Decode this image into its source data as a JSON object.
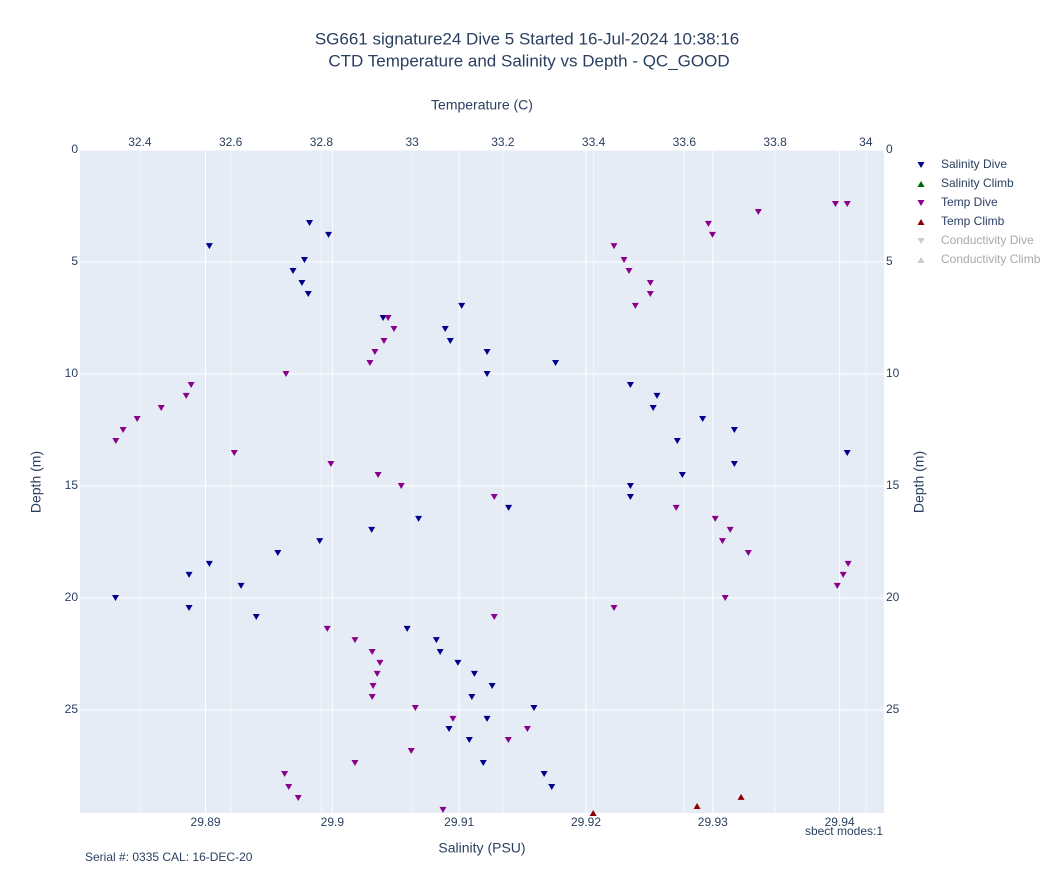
{
  "chart_data": {
    "type": "scatter",
    "title": "SG661 signature24 Dive 5 Started 16-Jul-2024 10:38:16",
    "subtitle": "CTD Temperature and Salinity vs Depth - QC_GOOD",
    "x_label": "Salinity (PSU)",
    "x2_label": "Temperature (C)",
    "y_label": "Depth (m)",
    "y2_label": "Depth (m)",
    "annotations": [
      "sbect modes:1",
      "Serial #: 0335  CAL: 16-DEC-20"
    ],
    "xlim": [
      29.8801,
      29.9435
    ],
    "xticks": [
      29.89,
      29.9,
      29.91,
      29.92,
      29.93,
      29.94
    ],
    "x2lim": [
      32.268,
      34.04
    ],
    "x2ticks": [
      32.4,
      32.6,
      32.8,
      33,
      33.2,
      33.4,
      33.6,
      33.8,
      34
    ],
    "ylim": [
      0,
      29.6
    ],
    "yticks": [
      0,
      5,
      10,
      15,
      20,
      25
    ],
    "yreversed": true,
    "y2lim": [
      0,
      29.6
    ],
    "y2ticks": [
      0,
      5,
      10,
      15,
      20,
      25
    ],
    "grid": true,
    "legend": "right",
    "series": [
      {
        "name": "Salinity Dive",
        "color": "#00008b",
        "symbol": "triangle-down",
        "axis": "x",
        "x": [
          29.8982,
          29.8997,
          29.8903,
          29.8978,
          29.8969,
          29.8976,
          29.8981,
          29.9102,
          29.904,
          29.9089,
          29.9093,
          29.9122,
          29.9176,
          29.9122,
          29.9235,
          29.9256,
          29.9253,
          29.9292,
          29.9317,
          29.9272,
          29.9406,
          29.9317,
          29.9276,
          29.9235,
          29.9235,
          29.9139,
          29.9068,
          29.9031,
          29.899,
          29.8957,
          29.8903,
          29.8887,
          29.8928,
          29.8829,
          29.8887,
          29.894,
          29.9059,
          29.9082,
          29.9085,
          29.9099,
          29.9112,
          29.9126,
          29.911,
          29.9159,
          29.9122,
          29.9092,
          29.9108,
          29.9119,
          29.9167,
          29.9173
        ],
        "values": [
          3.26,
          3.79,
          4.29,
          4.91,
          5.4,
          5.94,
          6.43,
          6.96,
          7.5,
          7.99,
          8.53,
          9.02,
          9.51,
          10.0,
          10.49,
          10.98,
          11.52,
          12.01,
          12.5,
          12.99,
          13.53,
          14.02,
          14.51,
          15.0,
          15.49,
          15.98,
          16.47,
          16.96,
          17.46,
          17.99,
          18.48,
          18.97,
          19.46,
          20.0,
          20.45,
          20.85,
          21.38,
          21.88,
          22.41,
          22.9,
          23.39,
          23.93,
          24.42,
          24.91,
          25.4,
          25.85,
          26.34,
          27.37,
          27.86,
          28.44
        ]
      },
      {
        "name": "Salinity Climb",
        "color": "#006400",
        "symbol": "triangle-up",
        "axis": "x",
        "x": [],
        "values": []
      },
      {
        "name": "Temp Dive",
        "color": "#8b008b",
        "symbol": "triangle-down",
        "axis": "x2",
        "x": [
          33.933,
          33.959,
          33.763,
          33.653,
          33.662,
          33.445,
          33.467,
          33.478,
          33.525,
          33.525,
          33.492,
          32.947,
          32.96,
          32.938,
          32.918,
          32.907,
          32.722,
          32.513,
          32.502,
          32.447,
          32.394,
          32.363,
          32.347,
          32.608,
          32.821,
          32.925,
          32.976,
          33.181,
          33.582,
          33.668,
          33.701,
          33.684,
          33.741,
          33.961,
          33.95,
          33.937,
          33.69,
          33.445,
          33.181,
          32.813,
          32.874,
          32.912,
          32.929,
          32.923,
          32.914,
          32.912,
          33.007,
          33.09,
          33.254,
          33.212,
          32.998,
          32.874,
          32.719,
          32.728,
          32.749,
          33.068
        ],
        "values": [
          2.41,
          2.41,
          2.77,
          3.3,
          3.79,
          4.29,
          4.91,
          5.4,
          5.94,
          6.43,
          6.96,
          7.5,
          7.99,
          8.53,
          9.02,
          9.51,
          10.0,
          10.49,
          10.98,
          11.52,
          12.01,
          12.5,
          12.99,
          13.53,
          14.02,
          14.51,
          15.0,
          15.49,
          15.98,
          16.47,
          16.96,
          17.46,
          17.99,
          18.48,
          18.97,
          19.46,
          20.0,
          20.45,
          20.85,
          21.38,
          21.88,
          22.41,
          22.9,
          23.39,
          23.93,
          24.42,
          24.91,
          25.4,
          25.85,
          26.34,
          26.83,
          27.37,
          27.86,
          28.44,
          28.93,
          29.46
        ]
      },
      {
        "name": "Temp Climb",
        "color": "#8b0000",
        "symbol": "triangle-up",
        "axis": "x2",
        "x": [
          33.725,
          33.628,
          33.399
        ],
        "values": [
          28.88,
          29.29,
          29.6
        ]
      },
      {
        "name": "Conductivity Dive",
        "color": "#a9a9a9",
        "symbol": "triangle-down",
        "visible": "legendonly",
        "x": [],
        "values": []
      },
      {
        "name": "Conductivity Climb",
        "color": "#a9a9a9",
        "symbol": "triangle-up",
        "visible": "legendonly",
        "x": [],
        "values": []
      }
    ]
  }
}
